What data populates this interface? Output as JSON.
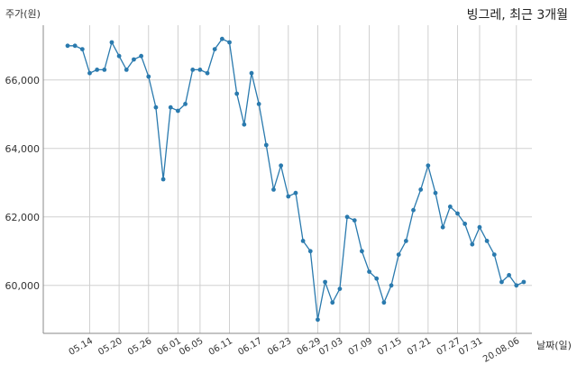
{
  "chart_data": {
    "type": "line",
    "title": "빙그레, 최근 3개월",
    "ylabel": "주가(원)",
    "xlabel": "날짜(일)",
    "ylim": [
      58600,
      67600
    ],
    "yticks": [
      60000,
      62000,
      64000,
      66000
    ],
    "ytick_labels": [
      "60,000",
      "62,000",
      "64,000",
      "66,000"
    ],
    "xtick_labels": [
      "05.14",
      "05.20",
      "05.26",
      "06.01",
      "06.05",
      "06.11",
      "06.17",
      "06.23",
      "06.29",
      "07.03",
      "07.09",
      "07.15",
      "07.21",
      "07.27",
      "07.31",
      "20.08.06"
    ],
    "xtick_index": [
      3,
      7,
      11,
      15,
      18,
      22,
      26,
      30,
      34,
      37,
      41,
      45,
      49,
      53,
      56,
      61
    ],
    "grid": true,
    "color": "#2a7aae",
    "series": [
      {
        "values": [
          67000,
          67000,
          66900,
          66200,
          66300,
          66300,
          67100,
          66700,
          66300,
          66600,
          66700,
          66100,
          65200,
          63100,
          65200,
          65100,
          65300,
          66300,
          66300,
          66200,
          66900,
          67200,
          67100,
          65600,
          64700,
          66200,
          65300,
          64100,
          62800,
          63500,
          62600,
          62700,
          61300,
          61000,
          59000,
          60100,
          59500,
          59900,
          62000,
          61900,
          61000,
          60400,
          60200,
          59500,
          60000,
          60900,
          61300,
          62200,
          62800,
          63500,
          62700,
          61700,
          62300,
          62100,
          61800,
          61200,
          61700,
          61300,
          60900,
          60100,
          60300,
          60000,
          60100
        ]
      }
    ]
  }
}
